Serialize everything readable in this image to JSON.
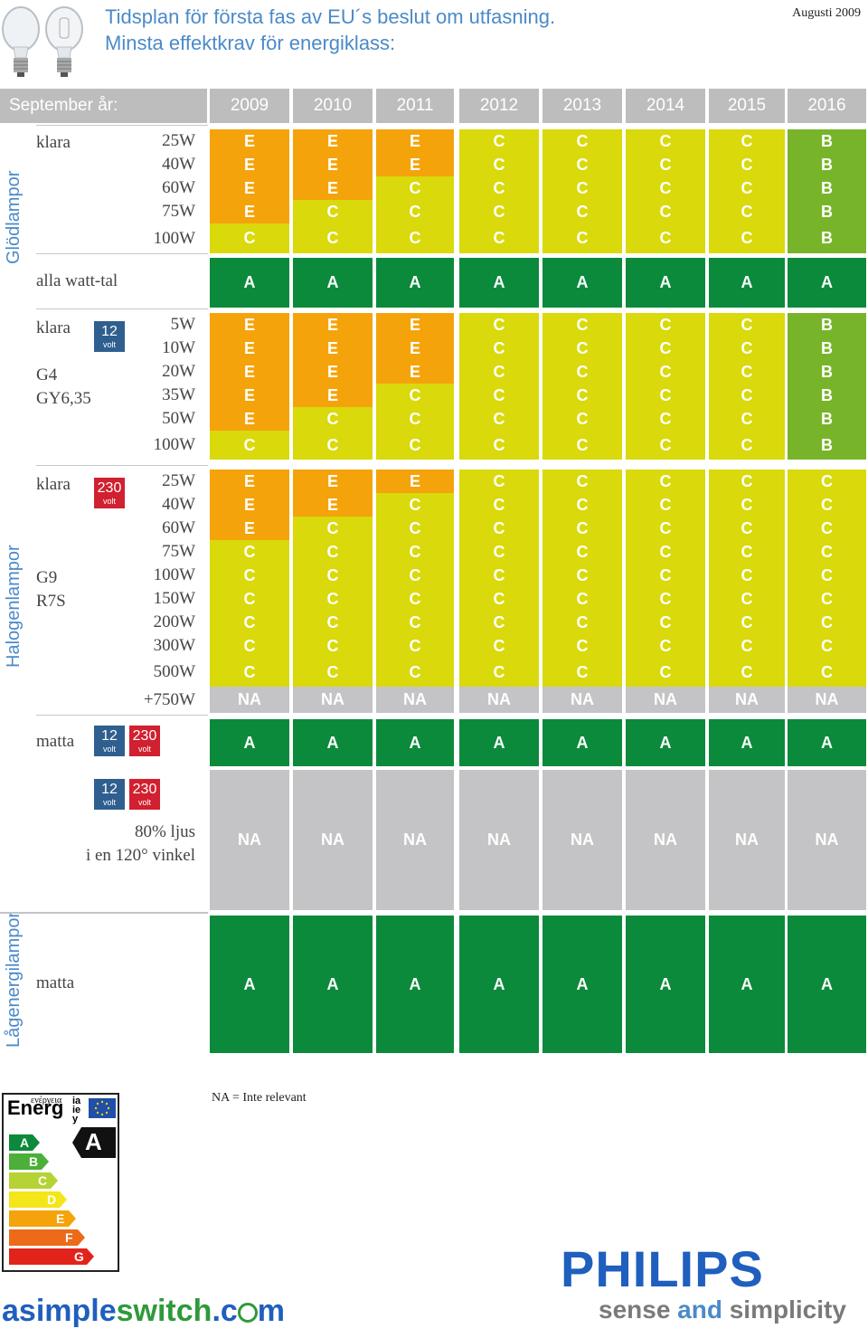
{
  "header": {
    "title_line1": "Tidsplan för första fas av EU´s beslut om utfasning.",
    "title_line2": "Minsta effektkrav för energiklass:",
    "date": "Augusti 2009"
  },
  "years_label": "September år:",
  "years": [
    "2009",
    "2010",
    "2011",
    "2012",
    "2013",
    "2014",
    "2015",
    "2016"
  ],
  "colors": {
    "E": "#f5a30a",
    "C": "#d9d90b",
    "B": "#78b42a",
    "A": "#0b8a3b",
    "NA": "#c4c4c6"
  },
  "sections": {
    "gloed": "Glödlampor",
    "halogen": "Halogenlampor",
    "lagenergi": "Lågenergilampor"
  },
  "labels": {
    "klara": "klara",
    "alla_watt": "alla watt-tal",
    "g4": "G4",
    "gy635": "GY6,35",
    "g9": "G9",
    "r7s": "R7S",
    "matta": "matta",
    "ljus_line1": "80% ljus",
    "ljus_line2": "i en 120° vinkel",
    "v12": "12",
    "v230": "230",
    "volt": "volt"
  },
  "rows": [
    {
      "watt": "25W",
      "vals": [
        "E",
        "E",
        "E",
        "C",
        "C",
        "C",
        "C",
        "B"
      ]
    },
    {
      "watt": "40W",
      "vals": [
        "E",
        "E",
        "E",
        "C",
        "C",
        "C",
        "C",
        "B"
      ]
    },
    {
      "watt": "60W",
      "vals": [
        "E",
        "E",
        "C",
        "C",
        "C",
        "C",
        "C",
        "B"
      ]
    },
    {
      "watt": "75W",
      "vals": [
        "E",
        "C",
        "C",
        "C",
        "C",
        "C",
        "C",
        "B"
      ]
    },
    {
      "watt": "100W",
      "vals": [
        "C",
        "C",
        "C",
        "C",
        "C",
        "C",
        "C",
        "B"
      ]
    },
    {
      "watt": "",
      "vals": [
        "A",
        "A",
        "A",
        "A",
        "A",
        "A",
        "A",
        "A"
      ]
    },
    {
      "watt": "5W",
      "vals": [
        "E",
        "E",
        "E",
        "C",
        "C",
        "C",
        "C",
        "B"
      ]
    },
    {
      "watt": "10W",
      "vals": [
        "E",
        "E",
        "E",
        "C",
        "C",
        "C",
        "C",
        "B"
      ]
    },
    {
      "watt": "20W",
      "vals": [
        "E",
        "E",
        "E",
        "C",
        "C",
        "C",
        "C",
        "B"
      ]
    },
    {
      "watt": "35W",
      "vals": [
        "E",
        "E",
        "C",
        "C",
        "C",
        "C",
        "C",
        "B"
      ]
    },
    {
      "watt": "50W",
      "vals": [
        "E",
        "C",
        "C",
        "C",
        "C",
        "C",
        "C",
        "B"
      ]
    },
    {
      "watt": "100W",
      "vals": [
        "C",
        "C",
        "C",
        "C",
        "C",
        "C",
        "C",
        "B"
      ]
    },
    {
      "watt": "25W",
      "vals": [
        "E",
        "E",
        "E",
        "C",
        "C",
        "C",
        "C",
        "C"
      ]
    },
    {
      "watt": "40W",
      "vals": [
        "E",
        "E",
        "C",
        "C",
        "C",
        "C",
        "C",
        "C"
      ]
    },
    {
      "watt": "60W",
      "vals": [
        "E",
        "C",
        "C",
        "C",
        "C",
        "C",
        "C",
        "C"
      ]
    },
    {
      "watt": "75W",
      "vals": [
        "C",
        "C",
        "C",
        "C",
        "C",
        "C",
        "C",
        "C"
      ]
    },
    {
      "watt": "100W",
      "vals": [
        "C",
        "C",
        "C",
        "C",
        "C",
        "C",
        "C",
        "C"
      ]
    },
    {
      "watt": "150W",
      "vals": [
        "C",
        "C",
        "C",
        "C",
        "C",
        "C",
        "C",
        "C"
      ]
    },
    {
      "watt": "200W",
      "vals": [
        "C",
        "C",
        "C",
        "C",
        "C",
        "C",
        "C",
        "C"
      ]
    },
    {
      "watt": "300W",
      "vals": [
        "C",
        "C",
        "C",
        "C",
        "C",
        "C",
        "C",
        "C"
      ]
    },
    {
      "watt": "500W",
      "vals": [
        "C",
        "C",
        "C",
        "C",
        "C",
        "C",
        "C",
        "C"
      ]
    },
    {
      "watt": "+750W",
      "vals": [
        "NA",
        "NA",
        "NA",
        "NA",
        "NA",
        "NA",
        "NA",
        "NA"
      ]
    },
    {
      "watt": "",
      "vals": [
        "A",
        "A",
        "A",
        "A",
        "A",
        "A",
        "A",
        "A"
      ]
    },
    {
      "watt": "",
      "vals": [
        "NA",
        "NA",
        "NA",
        "NA",
        "NA",
        "NA",
        "NA",
        "NA"
      ]
    },
    {
      "watt": "",
      "vals": [
        "A",
        "A",
        "A",
        "A",
        "A",
        "A",
        "A",
        "A"
      ]
    }
  ],
  "energy_label": {
    "word": "Energ",
    "greek": "ενέργεια",
    "suffix_top": "ia",
    "suffix_mid": "ie",
    "suffix_bot": "y",
    "classes": [
      "A",
      "B",
      "C",
      "D",
      "E",
      "F",
      "G"
    ],
    "class_colors": [
      "#0b8a3b",
      "#4caf3a",
      "#b5d334",
      "#f3e619",
      "#f5a30a",
      "#ec6a1a",
      "#e2231a"
    ],
    "rating": "A"
  },
  "na_note": "NA = Inte relevant",
  "brand": {
    "philips": "PHILIPS",
    "tag_sense": "sense ",
    "tag_and": "and",
    "tag_simplicity": " simplicity",
    "site_a": "asimple",
    "site_b": "switch",
    "site_c": ".c",
    "site_d": "m"
  }
}
